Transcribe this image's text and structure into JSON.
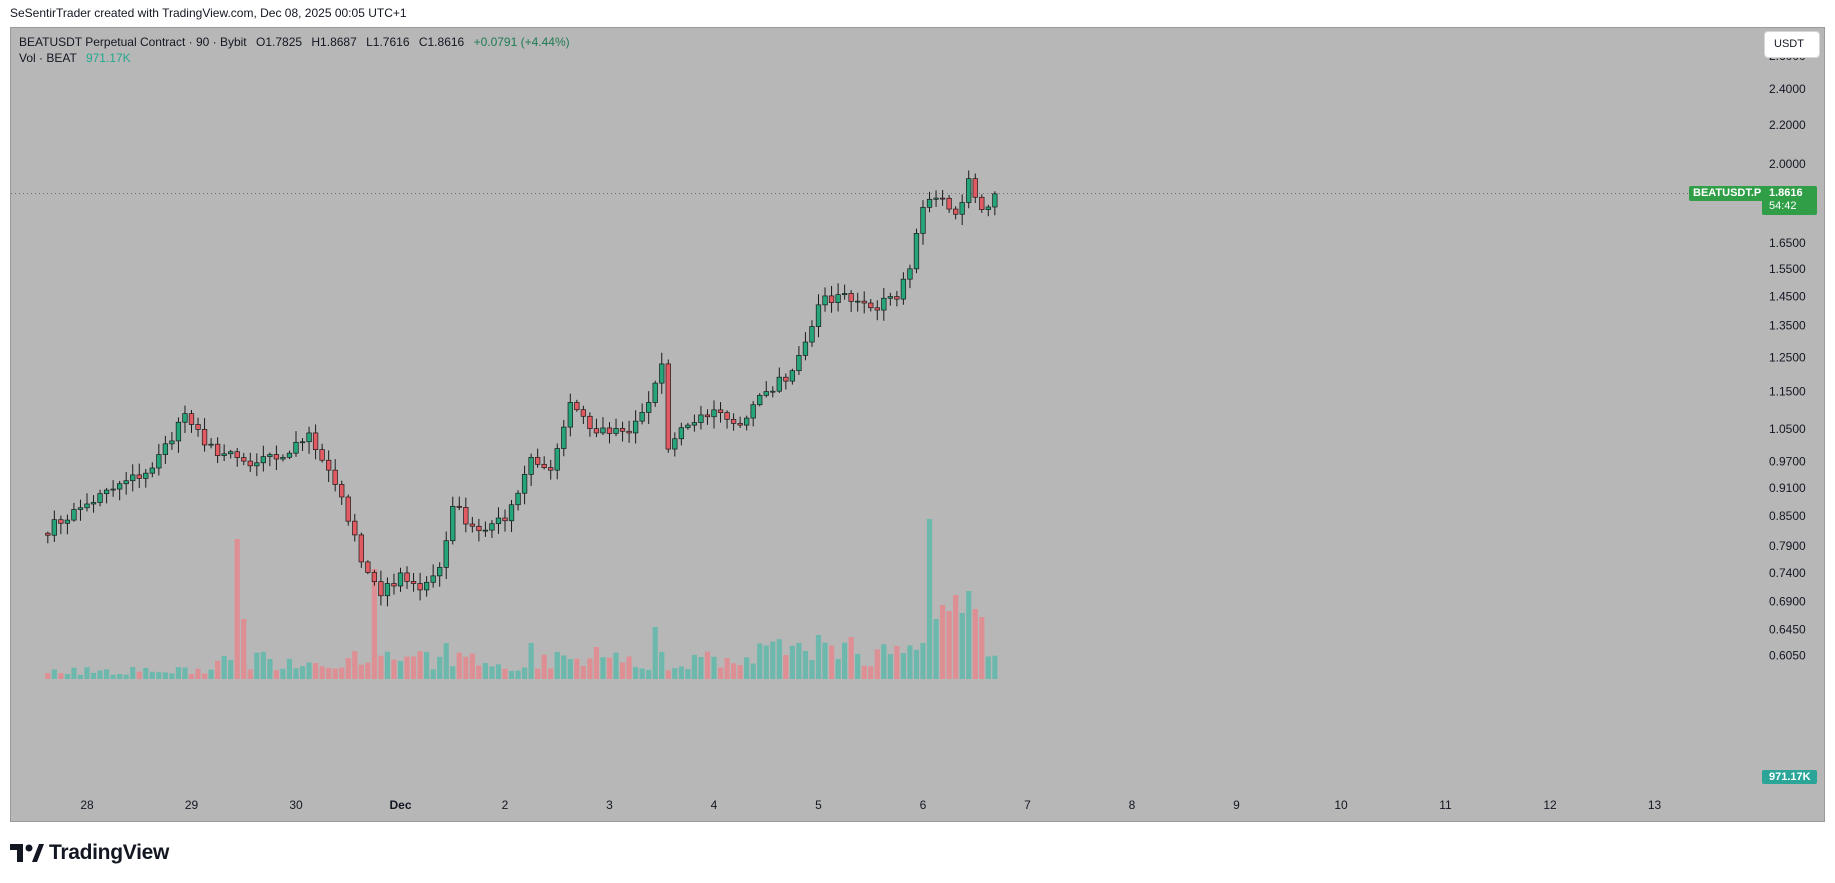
{
  "header": {
    "attribution": "SeSentirTrader created with TradingView.com, Dec 08, 2025 00:05 UTC+1"
  },
  "legend": {
    "symbol_line": "BEATUSDT Perpetual Contract · 90 · Bybit",
    "ohlc": {
      "o": "O1.7825",
      "h": "H1.8687",
      "l": "L1.7616",
      "c": "C1.8616",
      "chg": "+0.0791 (+4.44%)"
    },
    "volume_label": "Vol · BEAT",
    "volume_value": "971.17K"
  },
  "currency_button": "USDT",
  "price_tag": {
    "symbol": "BEATUSDT.P",
    "price": "1.8616",
    "countdown": "54:42"
  },
  "volume_tag": "971.17K",
  "footer": {
    "brand": "TradingView"
  },
  "colors": {
    "up": "#26a47a",
    "down": "#e25a62",
    "vol_up": "#6cb8ad",
    "vol_down": "#dd8f93",
    "tag": "#2f9e47",
    "bg": "#b7b7b7"
  },
  "chart_data": {
    "type": "candlestick",
    "scale": "log",
    "interval": "90",
    "y_ticks": [
      "2.6000",
      "2.4000",
      "2.2000",
      "2.0000",
      "1.6500",
      "1.5500",
      "1.4500",
      "1.3500",
      "1.2500",
      "1.1500",
      "1.0500",
      "0.9700",
      "0.9100",
      "0.8500",
      "0.7900",
      "0.7400",
      "0.6900",
      "0.6450",
      "0.6050"
    ],
    "x_ticks": [
      {
        "label": "28",
        "day": 0
      },
      {
        "label": "29",
        "day": 1
      },
      {
        "label": "30",
        "day": 2
      },
      {
        "label": "Dec",
        "day": 3,
        "bold": true
      },
      {
        "label": "2",
        "day": 4
      },
      {
        "label": "3",
        "day": 5
      },
      {
        "label": "4",
        "day": 6
      },
      {
        "label": "5",
        "day": 7
      },
      {
        "label": "6",
        "day": 8
      },
      {
        "label": "7",
        "day": 9
      },
      {
        "label": "8",
        "day": 10
      },
      {
        "label": "9",
        "day": 11
      },
      {
        "label": "10",
        "day": 12
      },
      {
        "label": "11",
        "day": 13
      },
      {
        "label": "12",
        "day": 14
      },
      {
        "label": "13",
        "day": 15
      }
    ],
    "key_points": [
      {
        "t": -7,
        "p": 0.815
      },
      {
        "t": 0,
        "p": 0.875
      },
      {
        "t": 10,
        "p": 0.955
      },
      {
        "t": 15,
        "p": 1.09
      },
      {
        "t": 18,
        "p": 1.01
      },
      {
        "t": 25,
        "p": 0.96
      },
      {
        "t": 31,
        "p": 0.99
      },
      {
        "t": 34,
        "p": 1.04
      },
      {
        "t": 37,
        "p": 0.95
      },
      {
        "t": 39,
        "p": 0.89
      },
      {
        "t": 42,
        "p": 0.76
      },
      {
        "t": 45,
        "p": 0.7
      },
      {
        "t": 48,
        "p": 0.74
      },
      {
        "t": 51,
        "p": 0.71
      },
      {
        "t": 54,
        "p": 0.75
      },
      {
        "t": 56,
        "p": 0.87
      },
      {
        "t": 60,
        "p": 0.82
      },
      {
        "t": 64,
        "p": 0.84
      },
      {
        "t": 68,
        "p": 0.98
      },
      {
        "t": 71,
        "p": 0.95
      },
      {
        "t": 74,
        "p": 1.12
      },
      {
        "t": 78,
        "p": 1.04
      },
      {
        "t": 83,
        "p": 1.04
      },
      {
        "t": 86,
        "p": 1.12
      },
      {
        "t": 88,
        "p": 1.23
      },
      {
        "t": 89,
        "p": 1.0
      },
      {
        "t": 92,
        "p": 1.06
      },
      {
        "t": 96,
        "p": 1.1
      },
      {
        "t": 100,
        "p": 1.06
      },
      {
        "t": 104,
        "p": 1.15
      },
      {
        "t": 108,
        "p": 1.21
      },
      {
        "t": 112,
        "p": 1.42
      },
      {
        "t": 116,
        "p": 1.46
      },
      {
        "t": 120,
        "p": 1.41
      },
      {
        "t": 124,
        "p": 1.44
      },
      {
        "t": 126,
        "p": 1.55
      },
      {
        "t": 128,
        "p": 1.8
      },
      {
        "t": 131,
        "p": 1.84
      },
      {
        "t": 133,
        "p": 1.77
      },
      {
        "t": 135,
        "p": 1.93
      },
      {
        "t": 137,
        "p": 1.79
      },
      {
        "t": 139,
        "p": 1.86
      }
    ],
    "volume_spikes": [
      {
        "t": 23,
        "v": 70
      },
      {
        "t": 24,
        "v": 30
      },
      {
        "t": 44,
        "v": 55
      },
      {
        "t": 55,
        "v": 18
      },
      {
        "t": 68,
        "v": 18
      },
      {
        "t": 78,
        "v": 16
      },
      {
        "t": 87,
        "v": 26
      },
      {
        "t": 110,
        "v": 14
      },
      {
        "t": 112,
        "v": 22
      },
      {
        "t": 117,
        "v": 21
      },
      {
        "t": 128,
        "v": 18
      },
      {
        "t": 129,
        "v": 80
      },
      {
        "t": 130,
        "v": 30
      },
      {
        "t": 131,
        "v": 37
      },
      {
        "t": 132,
        "v": 34
      },
      {
        "t": 133,
        "v": 42
      },
      {
        "t": 134,
        "v": 33
      },
      {
        "t": 135,
        "v": 44
      },
      {
        "t": 136,
        "v": 35
      },
      {
        "t": 137,
        "v": 31
      }
    ]
  }
}
